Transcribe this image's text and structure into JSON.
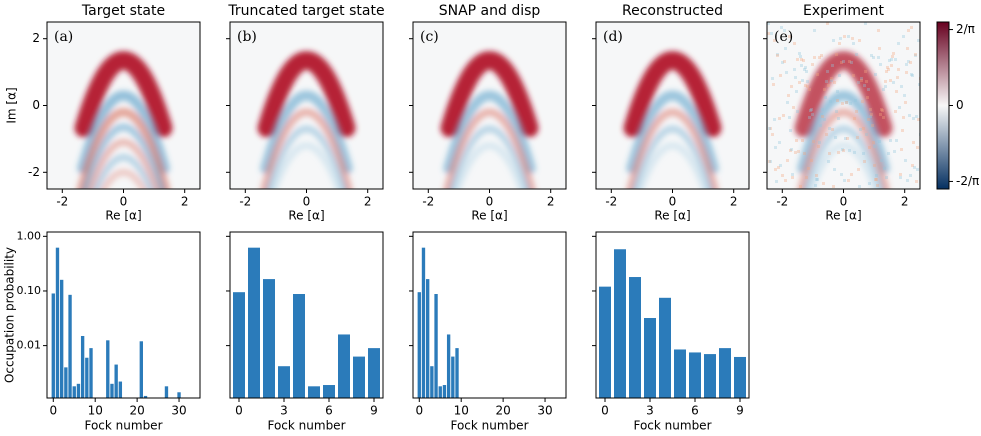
{
  "chart_data": [
    {
      "type": "heatmap",
      "title": "Target state",
      "panel_label": "(a)",
      "xlabel": "Re [α]",
      "ylabel": "Im [α]",
      "xlim": [
        -2.5,
        2.5
      ],
      "ylim": [
        -2.5,
        2.5
      ],
      "xticks": [
        -2,
        0,
        2
      ],
      "yticks": [
        -2,
        0,
        2
      ],
      "show_ytick_labels": true
    },
    {
      "type": "heatmap",
      "title": "Truncated target state",
      "panel_label": "(b)",
      "xlabel": "Re [α]",
      "xlim": [
        -2.5,
        2.5
      ],
      "ylim": [
        -2.5,
        2.5
      ],
      "xticks": [
        -2,
        0,
        2
      ],
      "yticks": [
        -2,
        0,
        2
      ],
      "show_ytick_labels": false
    },
    {
      "type": "heatmap",
      "title": "SNAP and disp",
      "panel_label": "(c)",
      "xlabel": "Re [α]",
      "xlim": [
        -2.5,
        2.5
      ],
      "ylim": [
        -2.5,
        2.5
      ],
      "xticks": [
        -2,
        0,
        2
      ],
      "yticks": [
        -2,
        0,
        2
      ],
      "show_ytick_labels": false
    },
    {
      "type": "heatmap",
      "title": "Reconstructed",
      "panel_label": "(d)",
      "xlabel": "Re [α]",
      "xlim": [
        -2.5,
        2.5
      ],
      "ylim": [
        -2.5,
        2.5
      ],
      "xticks": [
        -2,
        0,
        2
      ],
      "yticks": [
        -2,
        0,
        2
      ],
      "show_ytick_labels": false
    },
    {
      "type": "heatmap",
      "title": "Experiment",
      "panel_label": "(e)",
      "xlabel": "Re [α]",
      "xlim": [
        -2.5,
        2.5
      ],
      "ylim": [
        -2.5,
        2.5
      ],
      "xticks": [
        -2,
        0,
        2
      ],
      "yticks": [
        -2,
        0,
        2
      ],
      "show_ytick_labels": false
    },
    {
      "type": "colorbar",
      "ylim": [
        -0.7,
        0.7
      ],
      "yticks": [
        {
          "value": 0.6366,
          "label": "2/π"
        },
        0,
        {
          "value": -0.6366,
          "label": "-2/π"
        }
      ],
      "colors": [
        "#67001f",
        "#f7f7f7",
        "#053061"
      ]
    },
    {
      "type": "bar",
      "log_y": true,
      "color": "#2b7bba",
      "xlabel": "Fock number",
      "ylabel": "Occupation probability",
      "show_ytick_labels": true,
      "x": [
        0,
        1,
        2,
        3,
        4,
        5,
        6,
        7,
        8,
        9,
        13,
        14,
        15,
        16,
        21,
        22,
        27,
        30
      ],
      "values": [
        0.09,
        0.62,
        0.16,
        0.004,
        0.085,
        0.0018,
        0.002,
        0.015,
        0.006,
        0.009,
        0.0125,
        0.002,
        0.0045,
        0.0022,
        0.012,
        0.0012,
        0.0018,
        0.0014
      ],
      "xlim": [
        -1.5,
        35
      ],
      "xticks": [
        0,
        10,
        20,
        30
      ],
      "ylim": [
        0.0011,
        1.2
      ],
      "yticks": [
        {
          "value": 0.01,
          "label": "0.01"
        },
        {
          "value": 0.1,
          "label": "0.10"
        },
        {
          "value": 1,
          "label": "1.00"
        }
      ]
    },
    {
      "type": "bar",
      "log_y": true,
      "color": "#2b7bba",
      "xlabel": "Fock number",
      "show_ytick_labels": false,
      "x": [
        0,
        1,
        2,
        3,
        4,
        5,
        6,
        7,
        8,
        9
      ],
      "values": [
        0.095,
        0.62,
        0.165,
        0.0042,
        0.088,
        0.0018,
        0.0019,
        0.016,
        0.0063,
        0.009
      ],
      "xlim": [
        -0.6,
        9.6
      ],
      "xticks": [
        0,
        3,
        6,
        9
      ],
      "ylim": [
        0.0011,
        1.2
      ],
      "yticks": [
        0.01,
        0.1,
        1
      ]
    },
    {
      "type": "bar",
      "log_y": true,
      "color": "#2b7bba",
      "xlabel": "Fock number",
      "show_ytick_labels": false,
      "x": [
        0,
        1,
        2,
        3,
        4,
        5,
        6,
        7,
        8,
        9
      ],
      "values": [
        0.095,
        0.62,
        0.165,
        0.0042,
        0.088,
        0.0018,
        0.0019,
        0.016,
        0.0063,
        0.009
      ],
      "xlim": [
        -1.5,
        35
      ],
      "xticks": [
        0,
        10,
        20,
        30
      ],
      "ylim": [
        0.0011,
        1.2
      ],
      "yticks": [
        0.01,
        0.1,
        1
      ]
    },
    {
      "type": "bar",
      "log_y": true,
      "color": "#2b7bba",
      "xlabel": "Fock number",
      "show_ytick_labels": false,
      "x": [
        0,
        1,
        2,
        3,
        4,
        5,
        6,
        7,
        8,
        9
      ],
      "values": [
        0.12,
        0.58,
        0.18,
        0.032,
        0.075,
        0.0085,
        0.0075,
        0.007,
        0.009,
        0.0062
      ],
      "xlim": [
        -0.6,
        9.6
      ],
      "xticks": [
        0,
        3,
        6,
        9
      ],
      "ylim": [
        0.0011,
        1.2
      ],
      "yticks": [
        0.01,
        0.1,
        1
      ]
    }
  ]
}
